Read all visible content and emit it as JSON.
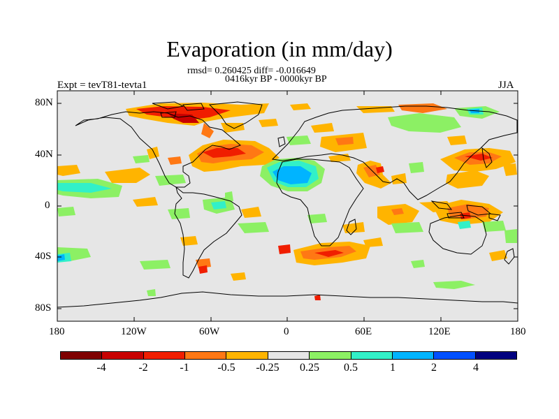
{
  "title": "Evaporation (in mm/day)",
  "stats": "rmsd= 0.260425 diff= -0.016649",
  "period": "0416kyr BP - 0000kyr BP",
  "experiment": "Expt = tevT81-tevta1",
  "season": "JJA",
  "lat_labels": [
    "80N",
    "40N",
    "0",
    "40S",
    "80S"
  ],
  "lon_labels": [
    "180",
    "120W",
    "60W",
    "0",
    "60E",
    "120E",
    "180"
  ],
  "colorbar": {
    "colors": [
      "#7f0000",
      "#c80000",
      "#f01e00",
      "#ff7814",
      "#ffb400",
      "#e6e6e6",
      "#8cf064",
      "#32f0c8",
      "#00b4ff",
      "#0050ff",
      "#00007f"
    ],
    "labels": [
      "-4",
      "-2",
      "-1",
      "-0.5",
      "-0.25",
      "0.25",
      "0.5",
      "1",
      "2",
      "4"
    ]
  }
}
